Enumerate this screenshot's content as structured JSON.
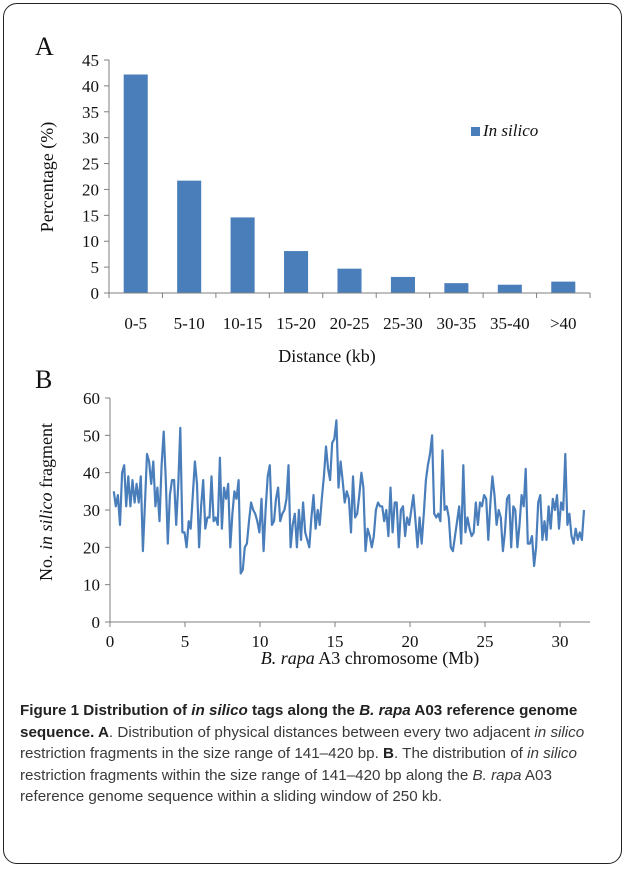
{
  "panel_a_label": "A",
  "panel_b_label": "B",
  "colors": {
    "bar": "#4a7ebb",
    "line": "#4a7ebb",
    "axis": "#7f7f7f"
  },
  "chart_data": [
    {
      "type": "bar",
      "categories": [
        "0-5",
        "5-10",
        "10-15",
        "15-20",
        "20-25",
        "25-30",
        "30-35",
        "35-40",
        ">40"
      ],
      "values": [
        42.2,
        21.7,
        14.6,
        8.1,
        4.7,
        3.1,
        1.9,
        1.6,
        2.2
      ],
      "series_name": "In silico",
      "xlabel": "Distance (kb)",
      "ylabel": "Percentage (%)",
      "ylim": [
        0,
        45
      ],
      "yticks": [
        0,
        5,
        10,
        15,
        20,
        25,
        30,
        35,
        40,
        45
      ],
      "legend": "top-right",
      "grid": false
    },
    {
      "type": "line",
      "xlabel_italic": "B. rapa",
      "xlabel_rest": " A3 chromosome (Mb)",
      "ylabel_pre": "No. ",
      "ylabel_italic": "in silico",
      "ylabel_post": " fragment",
      "xlim": [
        0,
        32
      ],
      "ylim": [
        0,
        60
      ],
      "xticks": [
        0,
        5,
        10,
        15,
        20,
        25,
        30
      ],
      "yticks": [
        0,
        10,
        20,
        30,
        40,
        50,
        60
      ],
      "grid": false,
      "x_step": 0.25,
      "values": [
        35,
        31,
        34,
        26,
        40,
        42,
        31,
        39,
        31,
        38,
        32,
        37,
        32,
        39,
        19,
        32,
        45,
        43,
        37,
        43,
        31,
        36,
        27,
        42,
        51,
        38,
        21,
        34,
        38,
        38,
        26,
        37,
        52,
        24,
        24,
        20,
        27,
        25,
        34,
        43,
        37,
        20,
        31,
        38,
        25,
        28,
        28,
        39,
        27,
        28,
        26,
        44,
        25,
        36,
        33,
        37,
        20,
        29,
        35,
        33,
        38,
        13,
        14,
        20,
        21,
        27,
        32,
        30,
        29,
        27,
        24,
        33,
        19,
        30,
        39,
        42,
        26,
        27,
        33,
        36,
        27,
        29,
        30,
        33,
        42,
        20,
        26,
        29,
        20,
        30,
        22,
        32,
        24,
        22,
        20,
        28,
        34,
        25,
        30,
        26,
        33,
        39,
        47,
        41,
        38,
        48,
        49,
        54,
        36,
        43,
        38,
        32,
        35,
        33,
        24,
        39,
        28,
        29,
        34,
        40,
        36,
        19,
        25,
        23,
        20,
        23,
        30,
        32,
        31,
        31,
        27,
        30,
        23,
        36,
        24,
        32,
        32,
        20,
        30,
        31,
        23,
        28,
        26,
        30,
        34,
        27,
        20,
        28,
        21,
        29,
        38,
        42,
        45,
        50,
        29,
        28,
        29,
        27,
        46,
        30,
        31,
        28,
        20,
        19,
        23,
        27,
        31,
        21,
        42,
        24,
        28,
        25,
        23,
        24,
        32,
        26,
        32,
        31,
        34,
        33,
        22,
        32,
        39,
        34,
        26,
        30,
        28,
        19,
        24,
        33,
        34,
        20,
        31,
        30,
        20,
        26,
        34,
        31,
        41,
        21,
        21,
        23,
        15,
        20,
        32,
        34,
        22,
        27,
        22,
        31,
        25,
        33,
        30,
        34,
        25,
        32,
        30,
        45,
        26,
        29,
        23,
        21,
        25,
        22,
        24,
        22,
        30
      ],
      "last_x": 31.6
    }
  ],
  "caption": {
    "title_pre": "Figure 1 Distribution of ",
    "title_italic": "in silico",
    "title_mid": " tags along the ",
    "title_italic2": "B. rapa",
    "title_post": " A03 reference genome sequence. ",
    "label_a": "A",
    "text_a1": ". Distribution of physical distances between every two adjacent ",
    "text_a_italic": "in silico",
    "text_a2": " restriction fragments in the size range of 141–420 bp. ",
    "label_b": "B",
    "text_b1": ". The distribution of ",
    "text_b_italic": "in silico",
    "text_b2": " restriction fragments within the size range of 141–420 bp along the ",
    "text_b_italic2": "B. rapa",
    "text_b3": " A03 reference genome sequence within a sliding window of 250 kb."
  }
}
